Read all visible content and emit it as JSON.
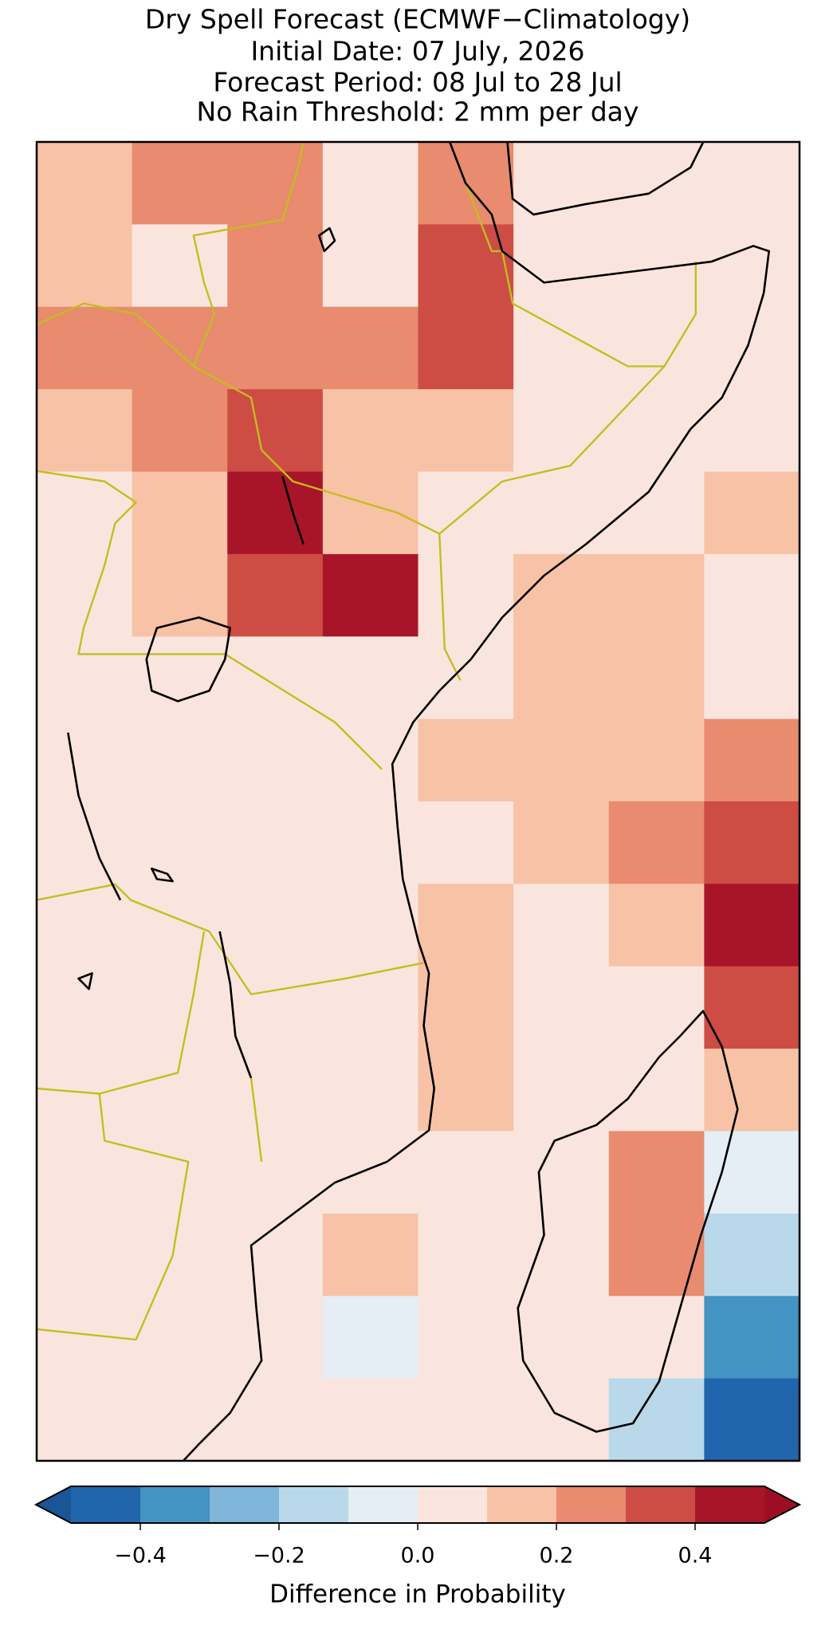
{
  "chart_data": {
    "type": "heatmap",
    "title_lines": [
      "Dry Spell Forecast (ECMWF−Climatology)",
      "Initial Date: 07 July, 2026",
      "Forecast Period: 08 Jul to 28 Jul",
      "No Rain Threshold: 2 mm per day"
    ],
    "grid": [
      [
        0.15,
        0.2,
        0.2,
        0.05,
        0.25,
        0.05,
        0.05,
        0.05
      ],
      [
        0.1,
        0.0,
        0.25,
        0.05,
        0.3,
        0.05,
        0.05,
        0.05
      ],
      [
        0.2,
        0.25,
        0.25,
        0.2,
        0.3,
        0.05,
        0.05,
        0.05
      ],
      [
        0.15,
        0.25,
        0.3,
        0.15,
        0.1,
        0.05,
        0.05,
        0.05
      ],
      [
        0.05,
        0.1,
        0.45,
        0.15,
        0.05,
        0.05,
        0.05,
        0.15
      ],
      [
        0.0,
        0.1,
        0.3,
        0.4,
        0.05,
        0.1,
        0.15,
        0.05
      ],
      [
        0.0,
        0.05,
        0.05,
        0.05,
        0.05,
        0.1,
        0.15,
        0.05
      ],
      [
        0.0,
        0.05,
        0.05,
        0.05,
        0.15,
        0.15,
        0.15,
        0.25
      ],
      [
        0.05,
        0.05,
        0.05,
        0.05,
        0.05,
        0.15,
        0.2,
        0.35
      ],
      [
        0.05,
        0.05,
        0.05,
        0.05,
        0.1,
        0.05,
        0.15,
        0.4
      ],
      [
        0.05,
        0.05,
        0.05,
        0.05,
        0.1,
        0.0,
        0.05,
        0.3
      ],
      [
        0.05,
        0.05,
        0.05,
        0.05,
        0.1,
        0.05,
        0.0,
        0.15
      ],
      [
        0.05,
        0.05,
        0.05,
        0.0,
        0.05,
        0.05,
        0.2,
        -0.1
      ],
      [
        0.05,
        0.05,
        0.0,
        0.15,
        0.05,
        0.05,
        0.2,
        -0.15
      ],
      [
        0.0,
        0.05,
        0.05,
        -0.05,
        0.05,
        0.05,
        0.05,
        -0.35
      ],
      [
        0.0,
        0.0,
        0.0,
        0.05,
        0.05,
        0.05,
        -0.15,
        -0.45
      ]
    ],
    "colorbar": {
      "label": "Difference in Probability",
      "levels": [
        -0.5,
        -0.4,
        -0.3,
        -0.2,
        -0.1,
        0,
        0.1,
        0.2,
        0.3,
        0.4,
        0.5
      ],
      "colors": [
        "#2166ac",
        "#4393c3",
        "#7fb6da",
        "#b9d9ea",
        "#e4eef4",
        "#f9e5dd",
        "#f8c2a6",
        "#e88b6e",
        "#cd4d45",
        "#a81529"
      ],
      "under_color": "#1a5596",
      "over_color": "#9c0e24",
      "ticks": [
        {
          "value": -0.4,
          "label": "−0.4"
        },
        {
          "value": -0.2,
          "label": "−0.2"
        },
        {
          "value": 0,
          "label": "0.0"
        },
        0.2,
        0.4
      ]
    }
  }
}
